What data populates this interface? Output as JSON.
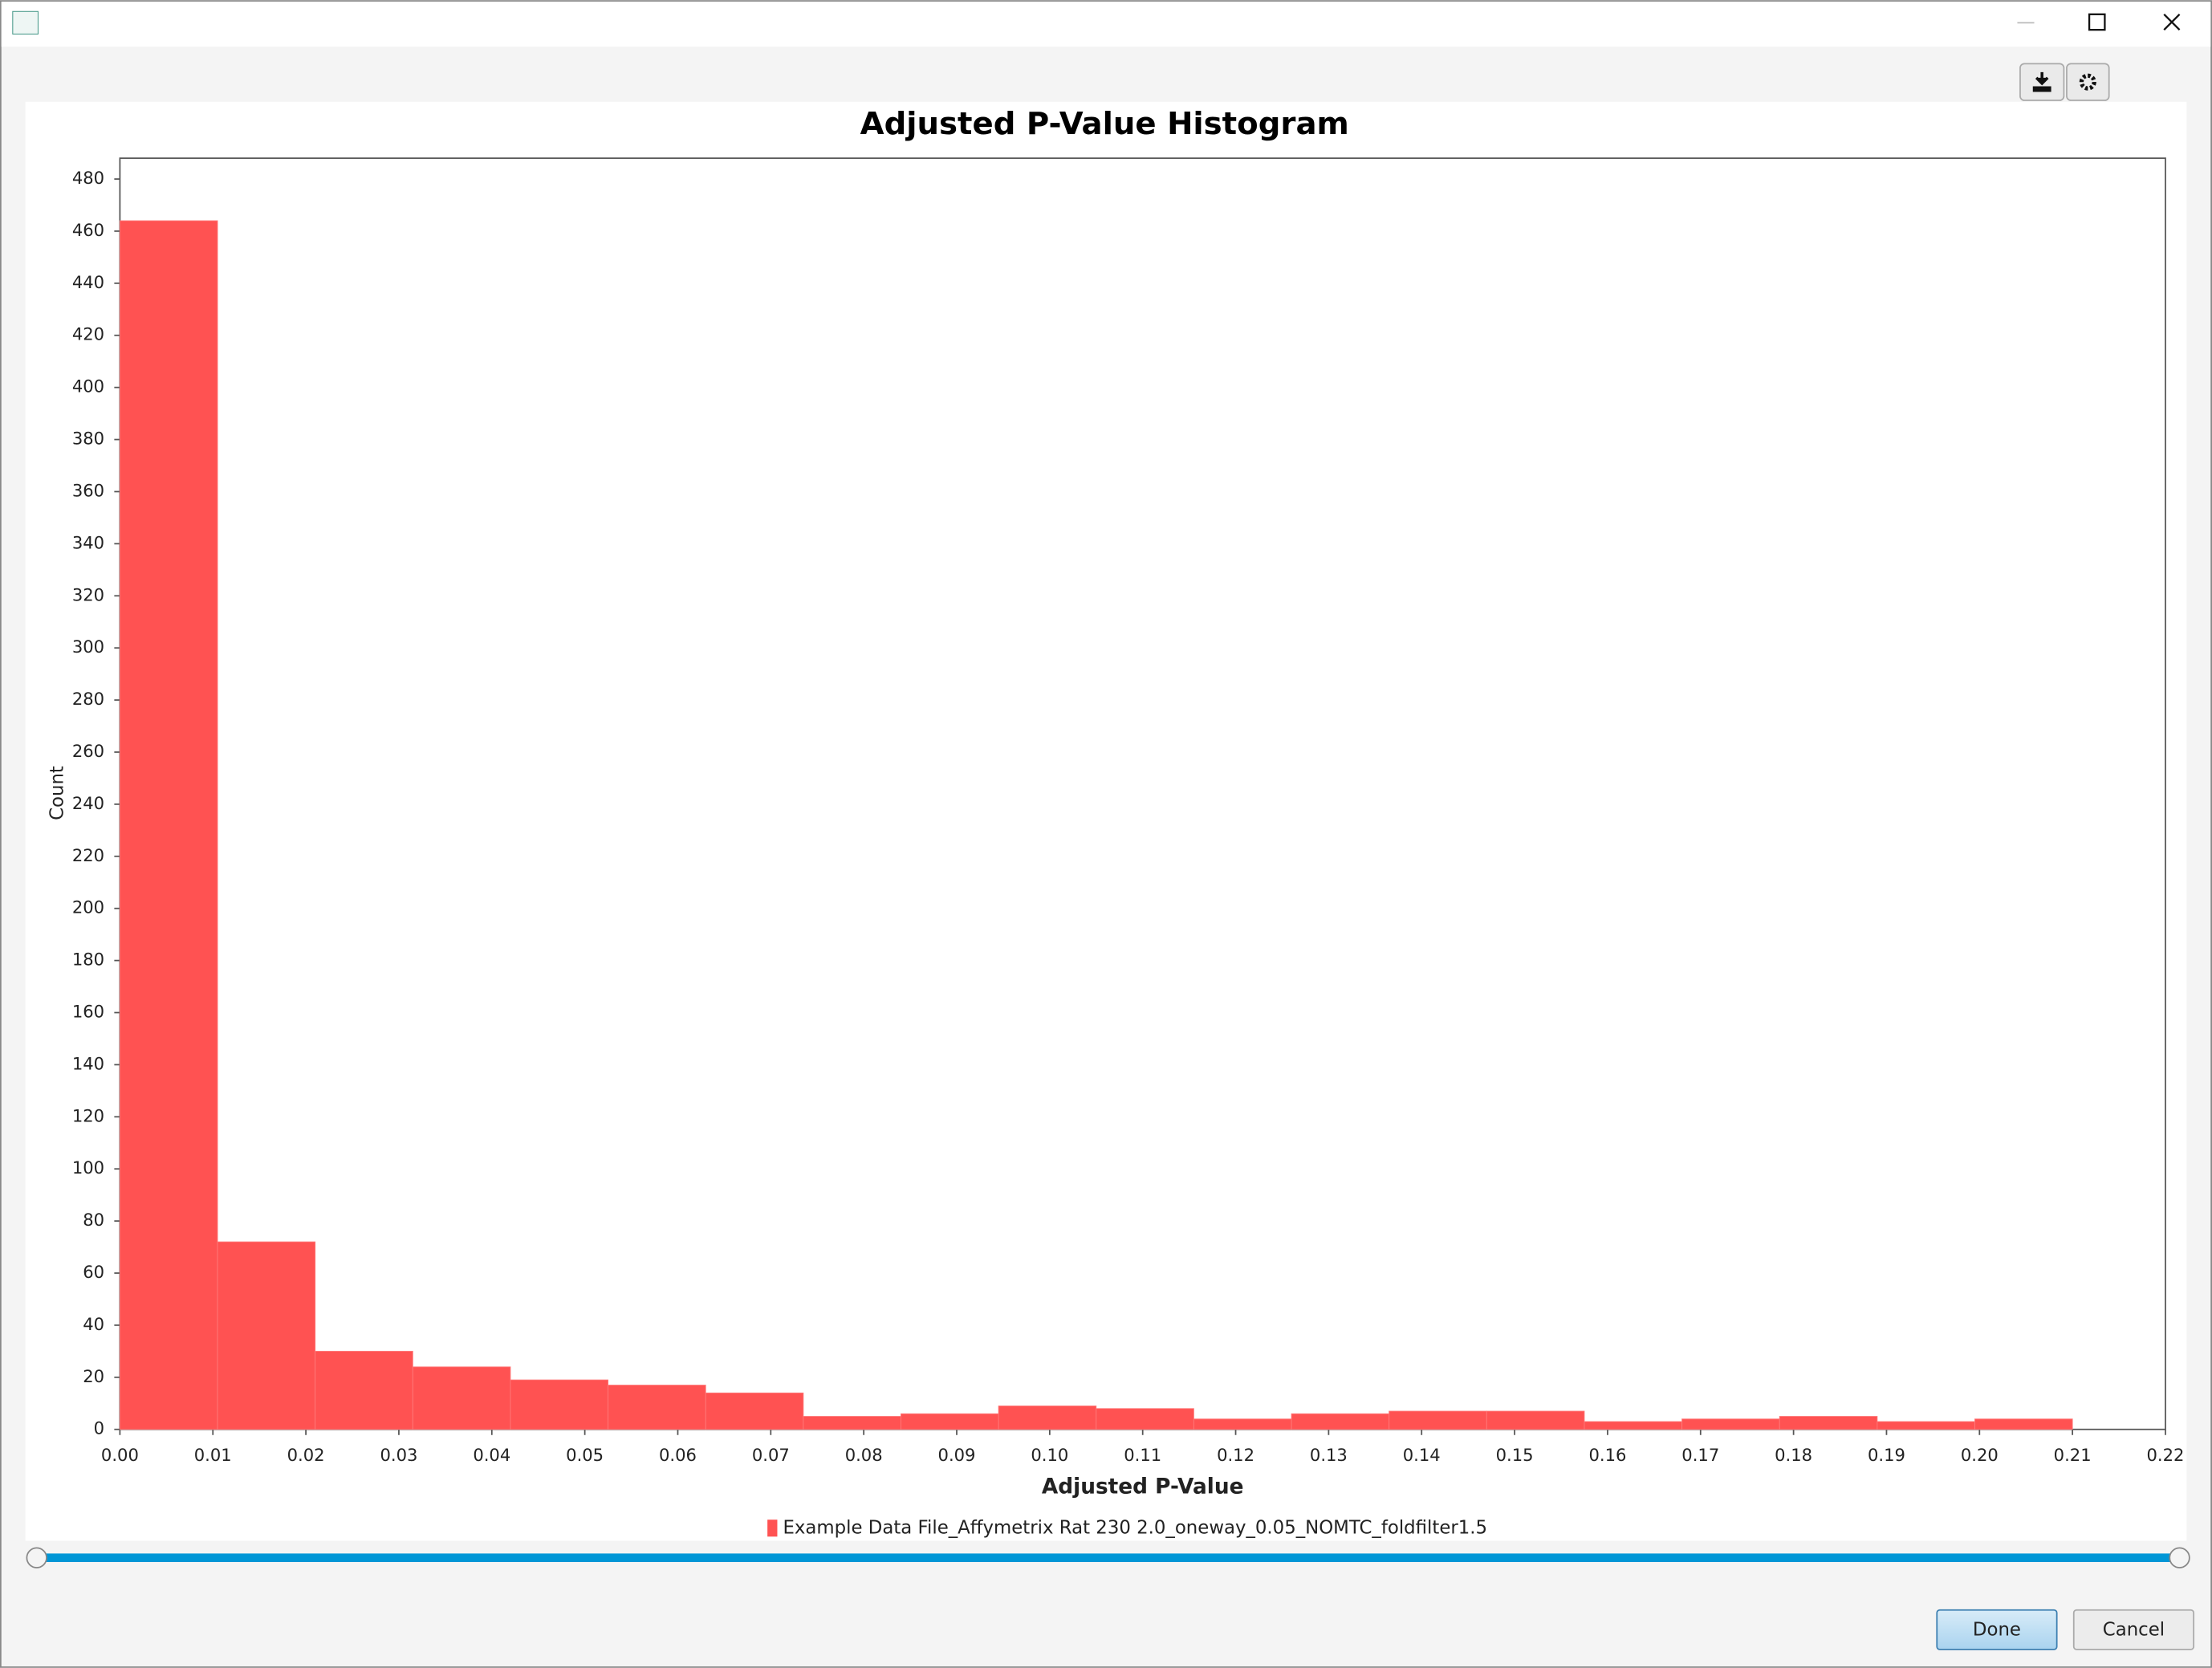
{
  "chart_data": {
    "type": "histogram",
    "title": "Adjusted P-Value Histogram",
    "x_label": "Adjusted P-Value",
    "y_label": "Count",
    "bins": [
      0,
      0.0105,
      0.021,
      0.0315,
      0.042,
      0.0525,
      0.063,
      0.0735,
      0.084,
      0.0945,
      0.105,
      0.1155,
      0.126,
      0.1365,
      0.147,
      0.1575,
      0.168,
      0.1785,
      0.189,
      0.1995,
      0.21
    ],
    "series": [
      {
        "name": "Example Data File_Affymetrix Rat 230 2.0_oneway_0.05_NOMTC_foldfilter1.5",
        "color": "#ff5252",
        "values": [
          464,
          72,
          30,
          24,
          19,
          17,
          14,
          5,
          6,
          9,
          8,
          4,
          6,
          7,
          7,
          3,
          4,
          5,
          3,
          4
        ]
      }
    ],
    "xlim": [
      0,
      0.22
    ],
    "xticks": [
      {
        "value": 0,
        "label": "0.00"
      },
      {
        "value": 0.01,
        "label": "0.01"
      },
      {
        "value": 0.02,
        "label": "0.02"
      },
      {
        "value": 0.03,
        "label": "0.03"
      },
      {
        "value": 0.04,
        "label": "0.04"
      },
      {
        "value": 0.05,
        "label": "0.05"
      },
      {
        "value": 0.06,
        "label": "0.06"
      },
      {
        "value": 0.07,
        "label": "0.07"
      },
      {
        "value": 0.08,
        "label": "0.08"
      },
      {
        "value": 0.09,
        "label": "0.09"
      },
      {
        "value": 0.1,
        "label": "0.10"
      },
      {
        "value": 0.11,
        "label": "0.11"
      },
      {
        "value": 0.12,
        "label": "0.12"
      },
      {
        "value": 0.13,
        "label": "0.13"
      },
      {
        "value": 0.14,
        "label": "0.14"
      },
      {
        "value": 0.15,
        "label": "0.15"
      },
      {
        "value": 0.16,
        "label": "0.16"
      },
      {
        "value": 0.17,
        "label": "0.17"
      },
      {
        "value": 0.18,
        "label": "0.18"
      },
      {
        "value": 0.19,
        "label": "0.19"
      },
      {
        "value": 0.2,
        "label": "0.20"
      },
      {
        "value": 0.21,
        "label": "0.21"
      },
      {
        "value": 0.22,
        "label": "0.22"
      }
    ],
    "ylim": [
      0,
      488
    ],
    "yticks": [
      0,
      20,
      40,
      60,
      80,
      100,
      120,
      140,
      160,
      180,
      200,
      220,
      240,
      260,
      280,
      300,
      320,
      340,
      360,
      380,
      400,
      420,
      440,
      460,
      480
    ],
    "grid": false,
    "legend": "bottom"
  },
  "dialog": {
    "done": "Done",
    "cancel": "Cancel"
  }
}
